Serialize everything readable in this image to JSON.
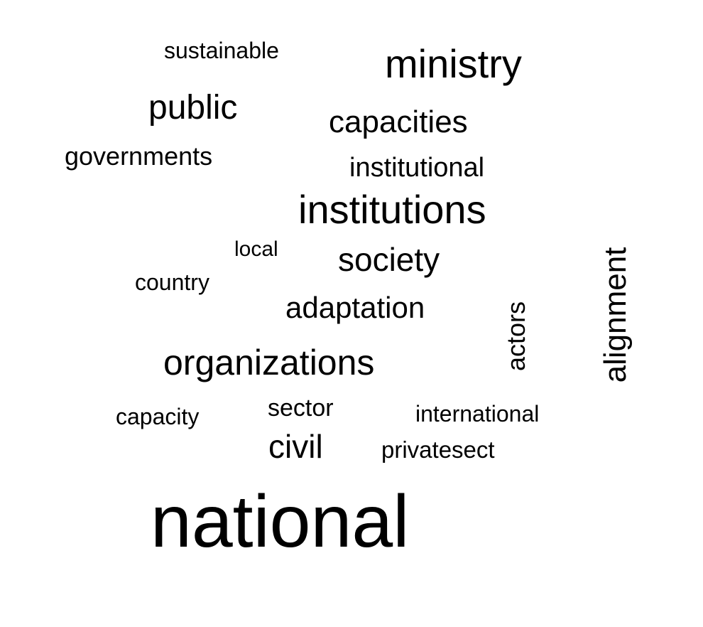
{
  "wordcloud": {
    "words": [
      {
        "text": "sustainable"
      },
      {
        "text": "ministry"
      },
      {
        "text": "public"
      },
      {
        "text": "capacities"
      },
      {
        "text": "governments"
      },
      {
        "text": "institutional"
      },
      {
        "text": "institutions"
      },
      {
        "text": "local"
      },
      {
        "text": "society"
      },
      {
        "text": "country"
      },
      {
        "text": "adaptation"
      },
      {
        "text": "organizations"
      },
      {
        "text": "capacity"
      },
      {
        "text": "sector"
      },
      {
        "text": "international"
      },
      {
        "text": "civil"
      },
      {
        "text": "privatesect"
      },
      {
        "text": "national"
      },
      {
        "text": "actors"
      },
      {
        "text": "alignment"
      }
    ],
    "text_color": "#000000",
    "background_color": "#ffffff"
  }
}
